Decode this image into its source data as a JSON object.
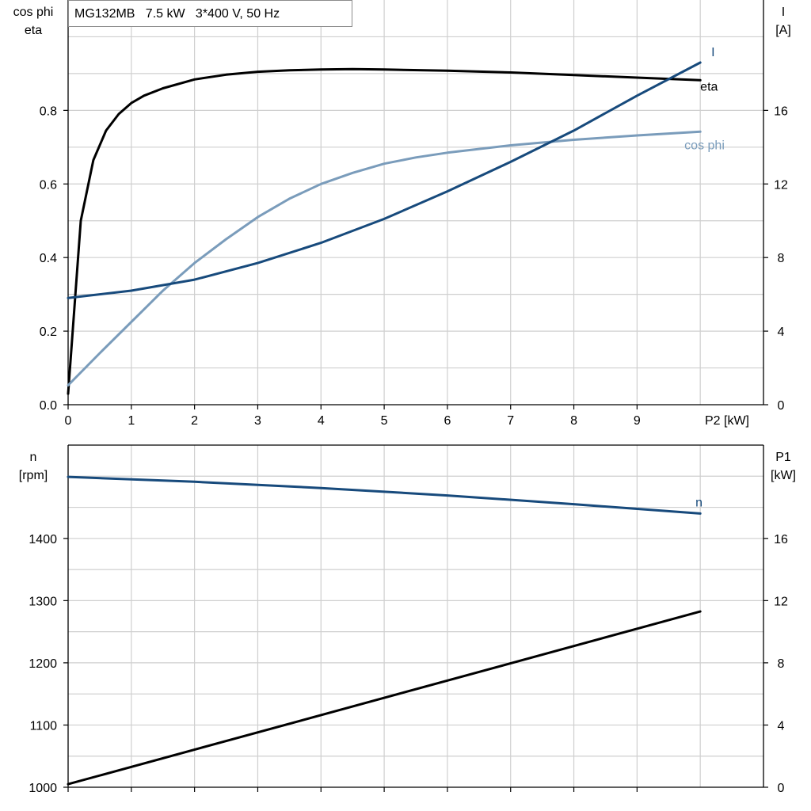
{
  "chart_data": [
    {
      "type": "line",
      "title": "MG132MB   7.5 kW   3*400 V, 50 Hz",
      "xlabel": "P2 [kW]",
      "xlim": [
        0,
        11
      ],
      "xticks": [
        0,
        1,
        2,
        3,
        4,
        5,
        6,
        7,
        8,
        9
      ],
      "ylabel_left": [
        "cos phi",
        "eta"
      ],
      "ylim_left": [
        0,
        1.1
      ],
      "yticks_left": [
        0.0,
        0.2,
        0.4,
        0.6,
        0.8
      ],
      "ytick_labels_left": [
        "0.0",
        "0.2",
        "0.4",
        "0.6",
        "0.8"
      ],
      "ylabel_right": [
        "I",
        "[A]"
      ],
      "ylim_right": [
        0,
        22
      ],
      "yticks_right": [
        0,
        4,
        8,
        12,
        16
      ],
      "grid": true,
      "series": [
        {
          "name": "eta",
          "axis": "left",
          "color": "#000000",
          "x": [
            0,
            0.2,
            0.4,
            0.6,
            0.8,
            1.0,
            1.2,
            1.5,
            2,
            2.5,
            3,
            3.5,
            4,
            4.5,
            5,
            6,
            7,
            8,
            9,
            10
          ],
          "y": [
            0.03,
            0.5,
            0.665,
            0.745,
            0.79,
            0.82,
            0.84,
            0.86,
            0.884,
            0.897,
            0.905,
            0.909,
            0.911,
            0.912,
            0.911,
            0.908,
            0.903,
            0.896,
            0.889,
            0.882
          ]
        },
        {
          "name": "cos phi",
          "axis": "left",
          "color": "#7a9cbb",
          "x": [
            0,
            0.5,
            1,
            1.5,
            2,
            2.5,
            3,
            3.5,
            4,
            4.5,
            5,
            5.5,
            6,
            7,
            8,
            9,
            10
          ],
          "y": [
            0.053,
            0.14,
            0.225,
            0.31,
            0.385,
            0.45,
            0.51,
            0.56,
            0.6,
            0.63,
            0.655,
            0.672,
            0.685,
            0.705,
            0.72,
            0.732,
            0.742
          ]
        },
        {
          "name": "I",
          "axis": "right",
          "color": "#174a7c",
          "x": [
            0,
            1,
            2,
            3,
            4,
            5,
            6,
            7,
            8,
            9,
            10
          ],
          "y": [
            5.8,
            6.2,
            6.8,
            7.7,
            8.8,
            10.1,
            11.6,
            13.2,
            14.9,
            16.8,
            18.6
          ]
        }
      ]
    },
    {
      "type": "line",
      "xlim": [
        0,
        11
      ],
      "xticks": [
        0,
        1,
        2,
        3,
        4,
        5,
        6,
        7,
        8,
        9
      ],
      "ylabel_left": [
        "n",
        "[rpm]"
      ],
      "ylim_left": [
        1000,
        1550
      ],
      "yticks_left": [
        1000,
        1100,
        1200,
        1300,
        1400
      ],
      "ylabel_right": [
        "P1",
        "[kW]"
      ],
      "ylim_right": [
        0,
        22
      ],
      "yticks_right": [
        0,
        4,
        8,
        12,
        16
      ],
      "grid": true,
      "series": [
        {
          "name": "n",
          "axis": "left",
          "color": "#174a7c",
          "x": [
            0,
            2,
            4,
            6,
            8,
            10
          ],
          "y": [
            1499,
            1491,
            1481,
            1469,
            1455,
            1440
          ]
        },
        {
          "axis": "right",
          "color": "#000000",
          "x": [
            0,
            10
          ],
          "y": [
            0.2,
            11.3
          ]
        }
      ]
    }
  ]
}
